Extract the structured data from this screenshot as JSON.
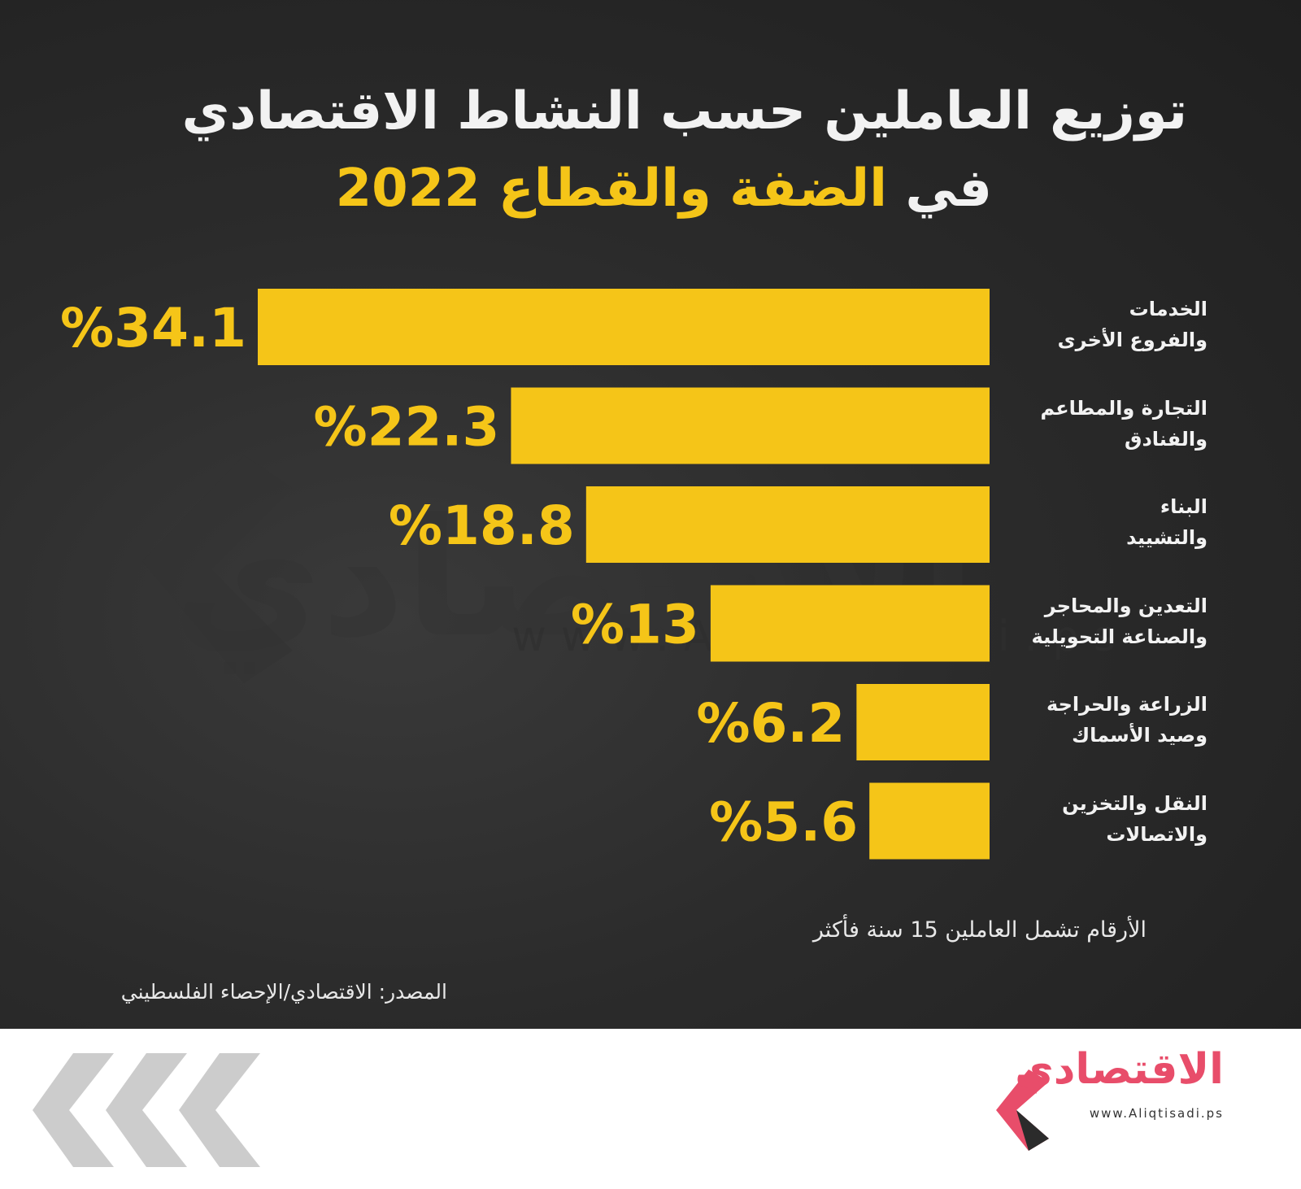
{
  "title": {
    "line1": "توزيع العاملين حسب النشاط الاقتصادي",
    "line2_prefix": "في",
    "line2_highlight": "الضفة والقطاع 2022"
  },
  "colors": {
    "bar": "#f5c518",
    "background": "#2b2b2b",
    "accent_logo": "#e84d6a"
  },
  "chart_data": {
    "type": "bar",
    "orientation": "horizontal",
    "categories": [
      [
        "الخدمات",
        "والفروع الأخرى"
      ],
      [
        "التجارة والمطاعم",
        "والفنادق"
      ],
      [
        "البناء",
        "والتشييد"
      ],
      [
        "التعدين والمحاجر",
        "والصناعة التحويلية"
      ],
      [
        "الزراعة والحراجة",
        "وصيد الأسماك"
      ],
      [
        "النقل والتخزين",
        "والاتصالات"
      ]
    ],
    "values": [
      34.1,
      22.3,
      18.8,
      13,
      6.2,
      5.6
    ],
    "value_labels": [
      "%34.1",
      "%22.3",
      "%18.8",
      "%13",
      "%6.2",
      "%5.6"
    ],
    "xlim": [
      0,
      34.1
    ],
    "grid": false,
    "legend": "none"
  },
  "note": "الأرقام تشمل العاملين 15 سنة فأكثر",
  "source": "المصدر: الاقتصادي/الإحصاء الفلسطيني",
  "footer": {
    "logo_text": "الاقتصادي",
    "logo_url": "www.Aliqtisadi.ps"
  }
}
